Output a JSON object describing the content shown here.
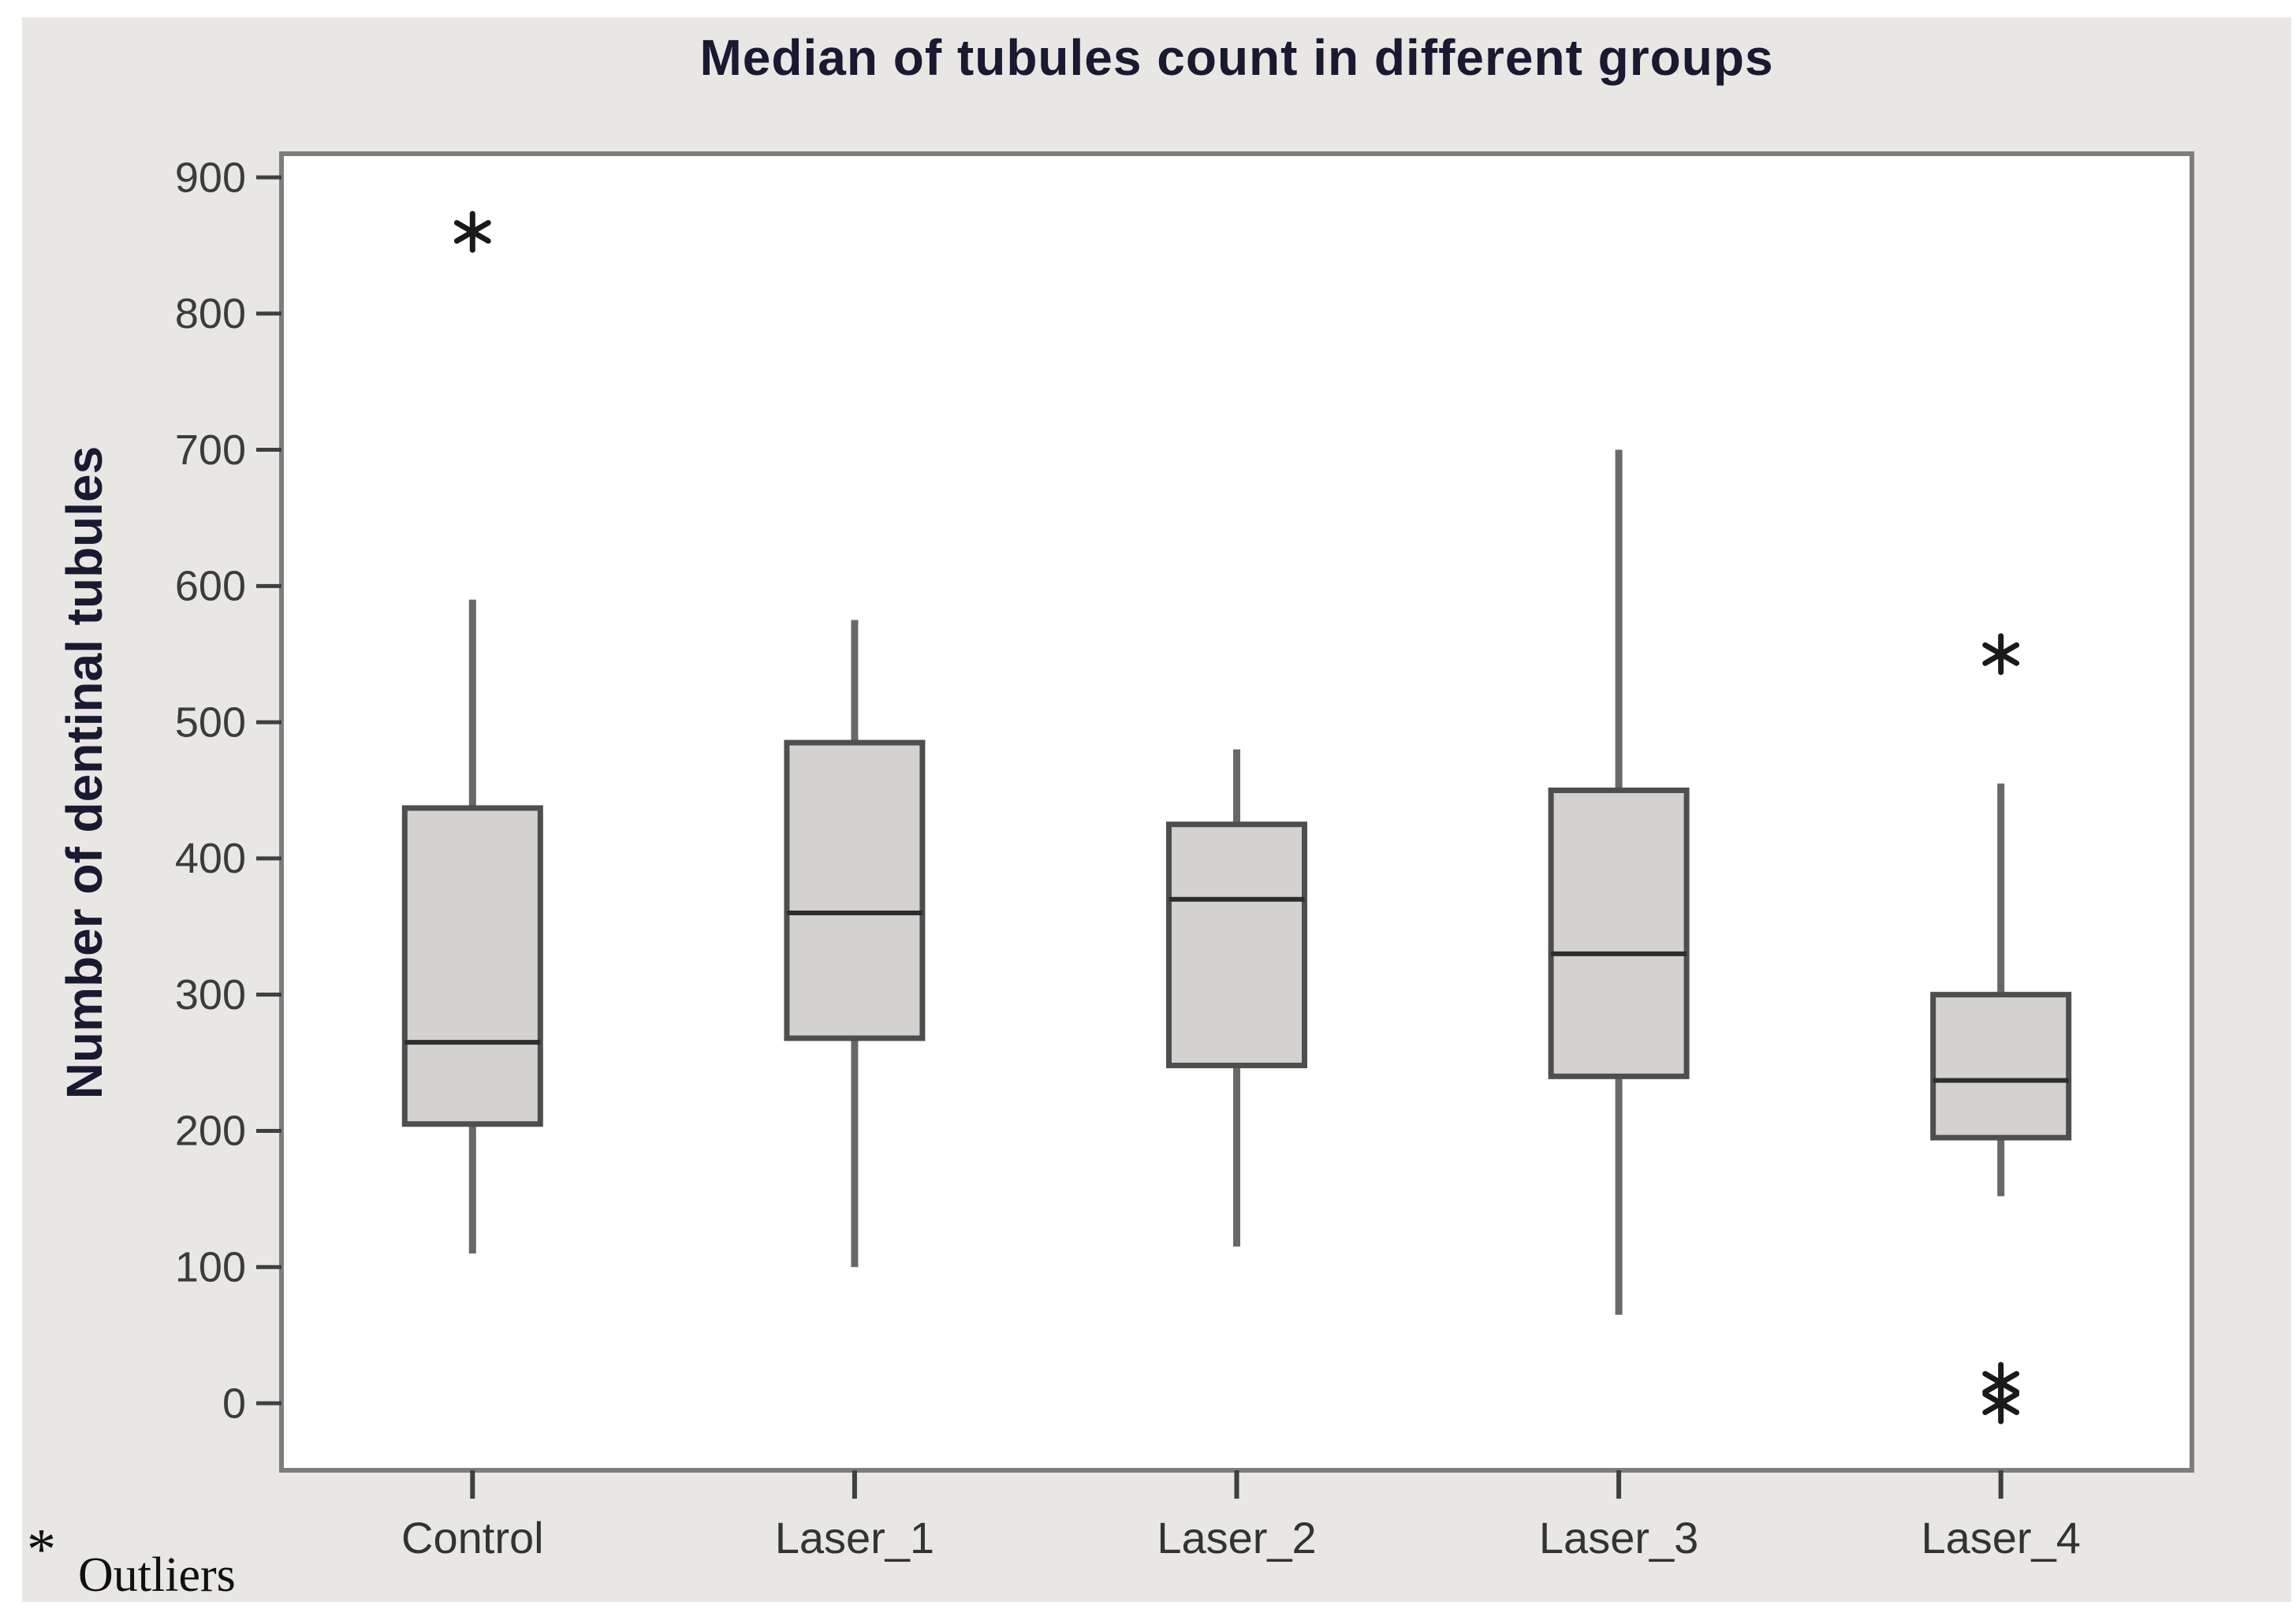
{
  "chart_data": {
    "type": "boxplot",
    "title": "Median of tubules count in different groups",
    "ylabel": "Number of dentinal tubules",
    "xlabel": "",
    "ylim": [
      0,
      900
    ],
    "ytick_step": 100,
    "grid": false,
    "categories": [
      "Control",
      "Laser_1",
      "Laser_2",
      "Laser_3",
      "Laser_4"
    ],
    "boxes": [
      {
        "category": "Control",
        "whisker_low": 110,
        "q1": 205,
        "median": 265,
        "q3": 437,
        "whisker_high": 590,
        "outliers": [
          860
        ]
      },
      {
        "category": "Laser_1",
        "whisker_low": 100,
        "q1": 268,
        "median": 360,
        "q3": 485,
        "whisker_high": 575,
        "outliers": []
      },
      {
        "category": "Laser_2",
        "whisker_low": 115,
        "q1": 248,
        "median": 370,
        "q3": 425,
        "whisker_high": 480,
        "outliers": []
      },
      {
        "category": "Laser_3",
        "whisker_low": 65,
        "q1": 240,
        "median": 330,
        "q3": 450,
        "whisker_high": 700,
        "outliers": []
      },
      {
        "category": "Laser_4",
        "whisker_low": 152,
        "q1": 195,
        "median": 237,
        "q3": 300,
        "whisker_high": 455,
        "outliers": [
          550,
          15,
          0
        ]
      }
    ],
    "legend": {
      "symbol": "*",
      "label": "Outliers",
      "position": "bottom-left"
    }
  },
  "colors": {
    "panel_bg": "#e8e7e4",
    "plot_bg": "#ffffff",
    "frame": "#7d7d7d",
    "box_fill": "#d3d2cf",
    "box_border": "#4e4e4e",
    "median_line": "#2d2d2d",
    "whisker": "#686868",
    "tick": "#3f3f3f",
    "tick_label": "#3c3c3c",
    "title_color": "#191931",
    "outlier_marker": "#1a1a1a"
  }
}
